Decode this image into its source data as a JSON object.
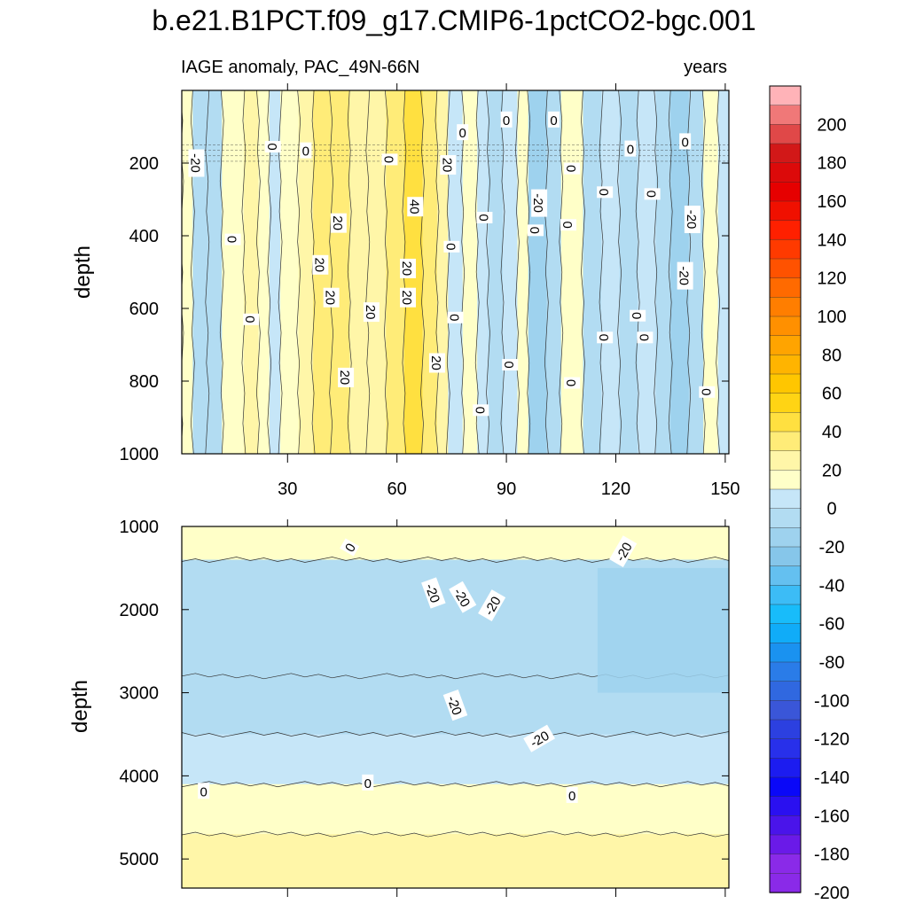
{
  "title": "b.e21.B1PCT.f09_g17.CMIP6-1pctCO2-bgc.001",
  "chart_data": [
    {
      "type": "heatmap",
      "panel": "upper",
      "left_label": "IAGE anomaly, PAC_49N-66N",
      "right_label": "years",
      "ylabel": "depth",
      "xlabel": "",
      "xlim": [
        1,
        151
      ],
      "ylim": [
        1000,
        0
      ],
      "x_ticks": [
        30,
        60,
        90,
        120,
        150
      ],
      "y_ticks": [
        200,
        400,
        600,
        800,
        1000
      ],
      "columns": [
        {
          "x0": 1,
          "x1": 4,
          "v": 5
        },
        {
          "x0": 4,
          "x1": 8,
          "v": -15
        },
        {
          "x0": 8,
          "x1": 12,
          "v": -10
        },
        {
          "x0": 12,
          "x1": 18,
          "v": 5
        },
        {
          "x0": 18,
          "x1": 22,
          "v": 12
        },
        {
          "x0": 22,
          "x1": 25,
          "v": 3
        },
        {
          "x0": 25,
          "x1": 28,
          "v": -6
        },
        {
          "x0": 28,
          "x1": 33,
          "v": 6
        },
        {
          "x0": 33,
          "x1": 37,
          "v": 18
        },
        {
          "x0": 37,
          "x1": 42,
          "v": 25
        },
        {
          "x0": 42,
          "x1": 47,
          "v": 22
        },
        {
          "x0": 47,
          "x1": 52,
          "v": 14
        },
        {
          "x0": 52,
          "x1": 57,
          "v": 20
        },
        {
          "x0": 57,
          "x1": 62,
          "v": 26
        },
        {
          "x0": 62,
          "x1": 67,
          "v": 34
        },
        {
          "x0": 67,
          "x1": 71,
          "v": 27
        },
        {
          "x0": 71,
          "x1": 74,
          "v": 12
        },
        {
          "x0": 74,
          "x1": 78,
          "v": -6
        },
        {
          "x0": 78,
          "x1": 82,
          "v": 6
        },
        {
          "x0": 82,
          "x1": 85,
          "v": -4
        },
        {
          "x0": 85,
          "x1": 89,
          "v": -12
        },
        {
          "x0": 89,
          "x1": 93,
          "v": -6
        },
        {
          "x0": 93,
          "x1": 96,
          "v": 5
        },
        {
          "x0": 96,
          "x1": 101,
          "v": -20
        },
        {
          "x0": 101,
          "x1": 105,
          "v": -12
        },
        {
          "x0": 105,
          "x1": 111,
          "v": 5
        },
        {
          "x0": 111,
          "x1": 116,
          "v": -10
        },
        {
          "x0": 116,
          "x1": 121,
          "v": -6
        },
        {
          "x0": 121,
          "x1": 126,
          "v": -15
        },
        {
          "x0": 126,
          "x1": 131,
          "v": -8
        },
        {
          "x0": 131,
          "x1": 135,
          "v": -12
        },
        {
          "x0": 135,
          "x1": 140,
          "v": -22
        },
        {
          "x0": 140,
          "x1": 144,
          "v": -12
        },
        {
          "x0": 144,
          "x1": 148,
          "v": 4
        },
        {
          "x0": 148,
          "x1": 151,
          "v": -6
        }
      ],
      "contour_labels": [
        {
          "x": 5,
          "y": 200,
          "text": "-20",
          "rot": 90
        },
        {
          "x": 15,
          "y": 410,
          "text": "0",
          "rot": 90
        },
        {
          "x": 26,
          "y": 155,
          "text": "0",
          "rot": 90
        },
        {
          "x": 35,
          "y": 165,
          "text": "0",
          "rot": 0
        },
        {
          "x": 20,
          "y": 630,
          "text": "0",
          "rot": 90
        },
        {
          "x": 44,
          "y": 365,
          "text": "20",
          "rot": 90
        },
        {
          "x": 39,
          "y": 480,
          "text": "20",
          "rot": 90
        },
        {
          "x": 42,
          "y": 570,
          "text": "20",
          "rot": 90
        },
        {
          "x": 53,
          "y": 610,
          "text": "20",
          "rot": 90
        },
        {
          "x": 46,
          "y": 790,
          "text": "20",
          "rot": 90
        },
        {
          "x": 58,
          "y": 190,
          "text": "0",
          "rot": 90
        },
        {
          "x": 65,
          "y": 320,
          "text": "40",
          "rot": 90
        },
        {
          "x": 63,
          "y": 490,
          "text": "20",
          "rot": 90
        },
        {
          "x": 63,
          "y": 570,
          "text": "20",
          "rot": 90
        },
        {
          "x": 71,
          "y": 750,
          "text": "20",
          "rot": 90
        },
        {
          "x": 74,
          "y": 205,
          "text": "20",
          "rot": 90
        },
        {
          "x": 75,
          "y": 430,
          "text": "0",
          "rot": 90
        },
        {
          "x": 76,
          "y": 625,
          "text": "0",
          "rot": 90
        },
        {
          "x": 78,
          "y": 115,
          "text": "0",
          "rot": 0
        },
        {
          "x": 83,
          "y": 880,
          "text": "0",
          "rot": 90
        },
        {
          "x": 84,
          "y": 350,
          "text": "0",
          "rot": 90
        },
        {
          "x": 91,
          "y": 755,
          "text": "0",
          "rot": 90
        },
        {
          "x": 90,
          "y": 80,
          "text": "0",
          "rot": 0
        },
        {
          "x": 98,
          "y": 385,
          "text": "0",
          "rot": 90
        },
        {
          "x": 99,
          "y": 310,
          "text": "-20",
          "rot": 90
        },
        {
          "x": 103,
          "y": 80,
          "text": "0",
          "rot": 0
        },
        {
          "x": 108,
          "y": 215,
          "text": "0",
          "rot": 90
        },
        {
          "x": 107,
          "y": 370,
          "text": "0",
          "rot": 90
        },
        {
          "x": 108,
          "y": 805,
          "text": "0",
          "rot": 90
        },
        {
          "x": 117,
          "y": 280,
          "text": "0",
          "rot": 90
        },
        {
          "x": 117,
          "y": 680,
          "text": "0",
          "rot": 90
        },
        {
          "x": 124,
          "y": 160,
          "text": "0",
          "rot": 0
        },
        {
          "x": 126,
          "y": 620,
          "text": "0",
          "rot": 90
        },
        {
          "x": 128,
          "y": 680,
          "text": "0",
          "rot": 90
        },
        {
          "x": 130,
          "y": 285,
          "text": "0",
          "rot": 90
        },
        {
          "x": 139,
          "y": 140,
          "text": "0",
          "rot": 0
        },
        {
          "x": 141,
          "y": 355,
          "text": "-20",
          "rot": 90
        },
        {
          "x": 139,
          "y": 510,
          "text": "-20",
          "rot": 90
        },
        {
          "x": 145,
          "y": 830,
          "text": "0",
          "rot": 90
        }
      ]
    },
    {
      "type": "heatmap",
      "panel": "lower",
      "ylabel": "depth",
      "xlabel": "",
      "xlim": [
        1,
        151
      ],
      "ylim": [
        5350,
        1000
      ],
      "y_ticks": [
        1000,
        2000,
        3000,
        4000,
        5000
      ],
      "bands": [
        {
          "y0": 1000,
          "y1": 1400,
          "v": 5
        },
        {
          "y0": 1400,
          "y1": 2800,
          "v": -15
        },
        {
          "y0": 2800,
          "y1": 3500,
          "v": -10
        },
        {
          "y0": 3500,
          "y1": 4100,
          "v": -5
        },
        {
          "y0": 4100,
          "y1": 4700,
          "v": 5
        },
        {
          "y0": 4700,
          "y1": 5350,
          "v": 15
        }
      ],
      "deep_patch_v": -22,
      "contour_labels": [
        {
          "x": 47,
          "y": 1250,
          "text": "0",
          "rot": -60
        },
        {
          "x": 122,
          "y": 1300,
          "text": "-20",
          "rot": -60
        },
        {
          "x": 70,
          "y": 1800,
          "text": "-20",
          "rot": 70
        },
        {
          "x": 78,
          "y": 1850,
          "text": "-20",
          "rot": 60
        },
        {
          "x": 86,
          "y": 1950,
          "text": "-20",
          "rot": -60
        },
        {
          "x": 76,
          "y": 3150,
          "text": "-20",
          "rot": 70
        },
        {
          "x": 99,
          "y": 3550,
          "text": "-20",
          "rot": -30
        },
        {
          "x": 7,
          "y": 4180,
          "text": "0",
          "rot": 0
        },
        {
          "x": 52,
          "y": 4080,
          "text": "0",
          "rot": 0
        },
        {
          "x": 108,
          "y": 4230,
          "text": "0",
          "rot": 0
        }
      ]
    }
  ],
  "colorbar": {
    "levels": [
      200,
      180,
      160,
      140,
      120,
      100,
      80,
      60,
      40,
      20,
      0,
      -20,
      -40,
      -60,
      -80,
      -100,
      -120,
      -140,
      -160,
      -180,
      -200
    ],
    "tick_labels": [
      "200",
      "180",
      "160",
      "140",
      "120",
      "100",
      "80",
      "60",
      "40",
      "20",
      "0",
      "-20",
      "-40",
      "-60",
      "-80",
      "-100",
      "-120",
      "-140",
      "-160",
      "-180",
      "-200"
    ],
    "min": -210,
    "max": 210,
    "colors": [
      "#ffb3b8",
      "#f07878",
      "#e04848",
      "#d21818",
      "#dc0a0a",
      "#e60000",
      "#f01000",
      "#ff2000",
      "#ff3a00",
      "#ff5200",
      "#ff6a00",
      "#ff7e00",
      "#ff9000",
      "#ffa400",
      "#ffb400",
      "#ffc600",
      "#ffd414",
      "#ffe040",
      "#ffec78",
      "#fff6a8",
      "#ffffc8",
      "#c6e6f8",
      "#b2dcf2",
      "#9ed2ee",
      "#86c6ea",
      "#64c0f0",
      "#3cbcf6",
      "#18bcfa",
      "#10acf8",
      "#1a92f0",
      "#2a7ce8",
      "#3068e0",
      "#3a56d8",
      "#2c40e0",
      "#2830ea",
      "#1c1cf0",
      "#0a08f8",
      "#2a10f0",
      "#4a14ea",
      "#6a1ae8",
      "#8a2ae8",
      "#8a2ae8"
    ]
  }
}
